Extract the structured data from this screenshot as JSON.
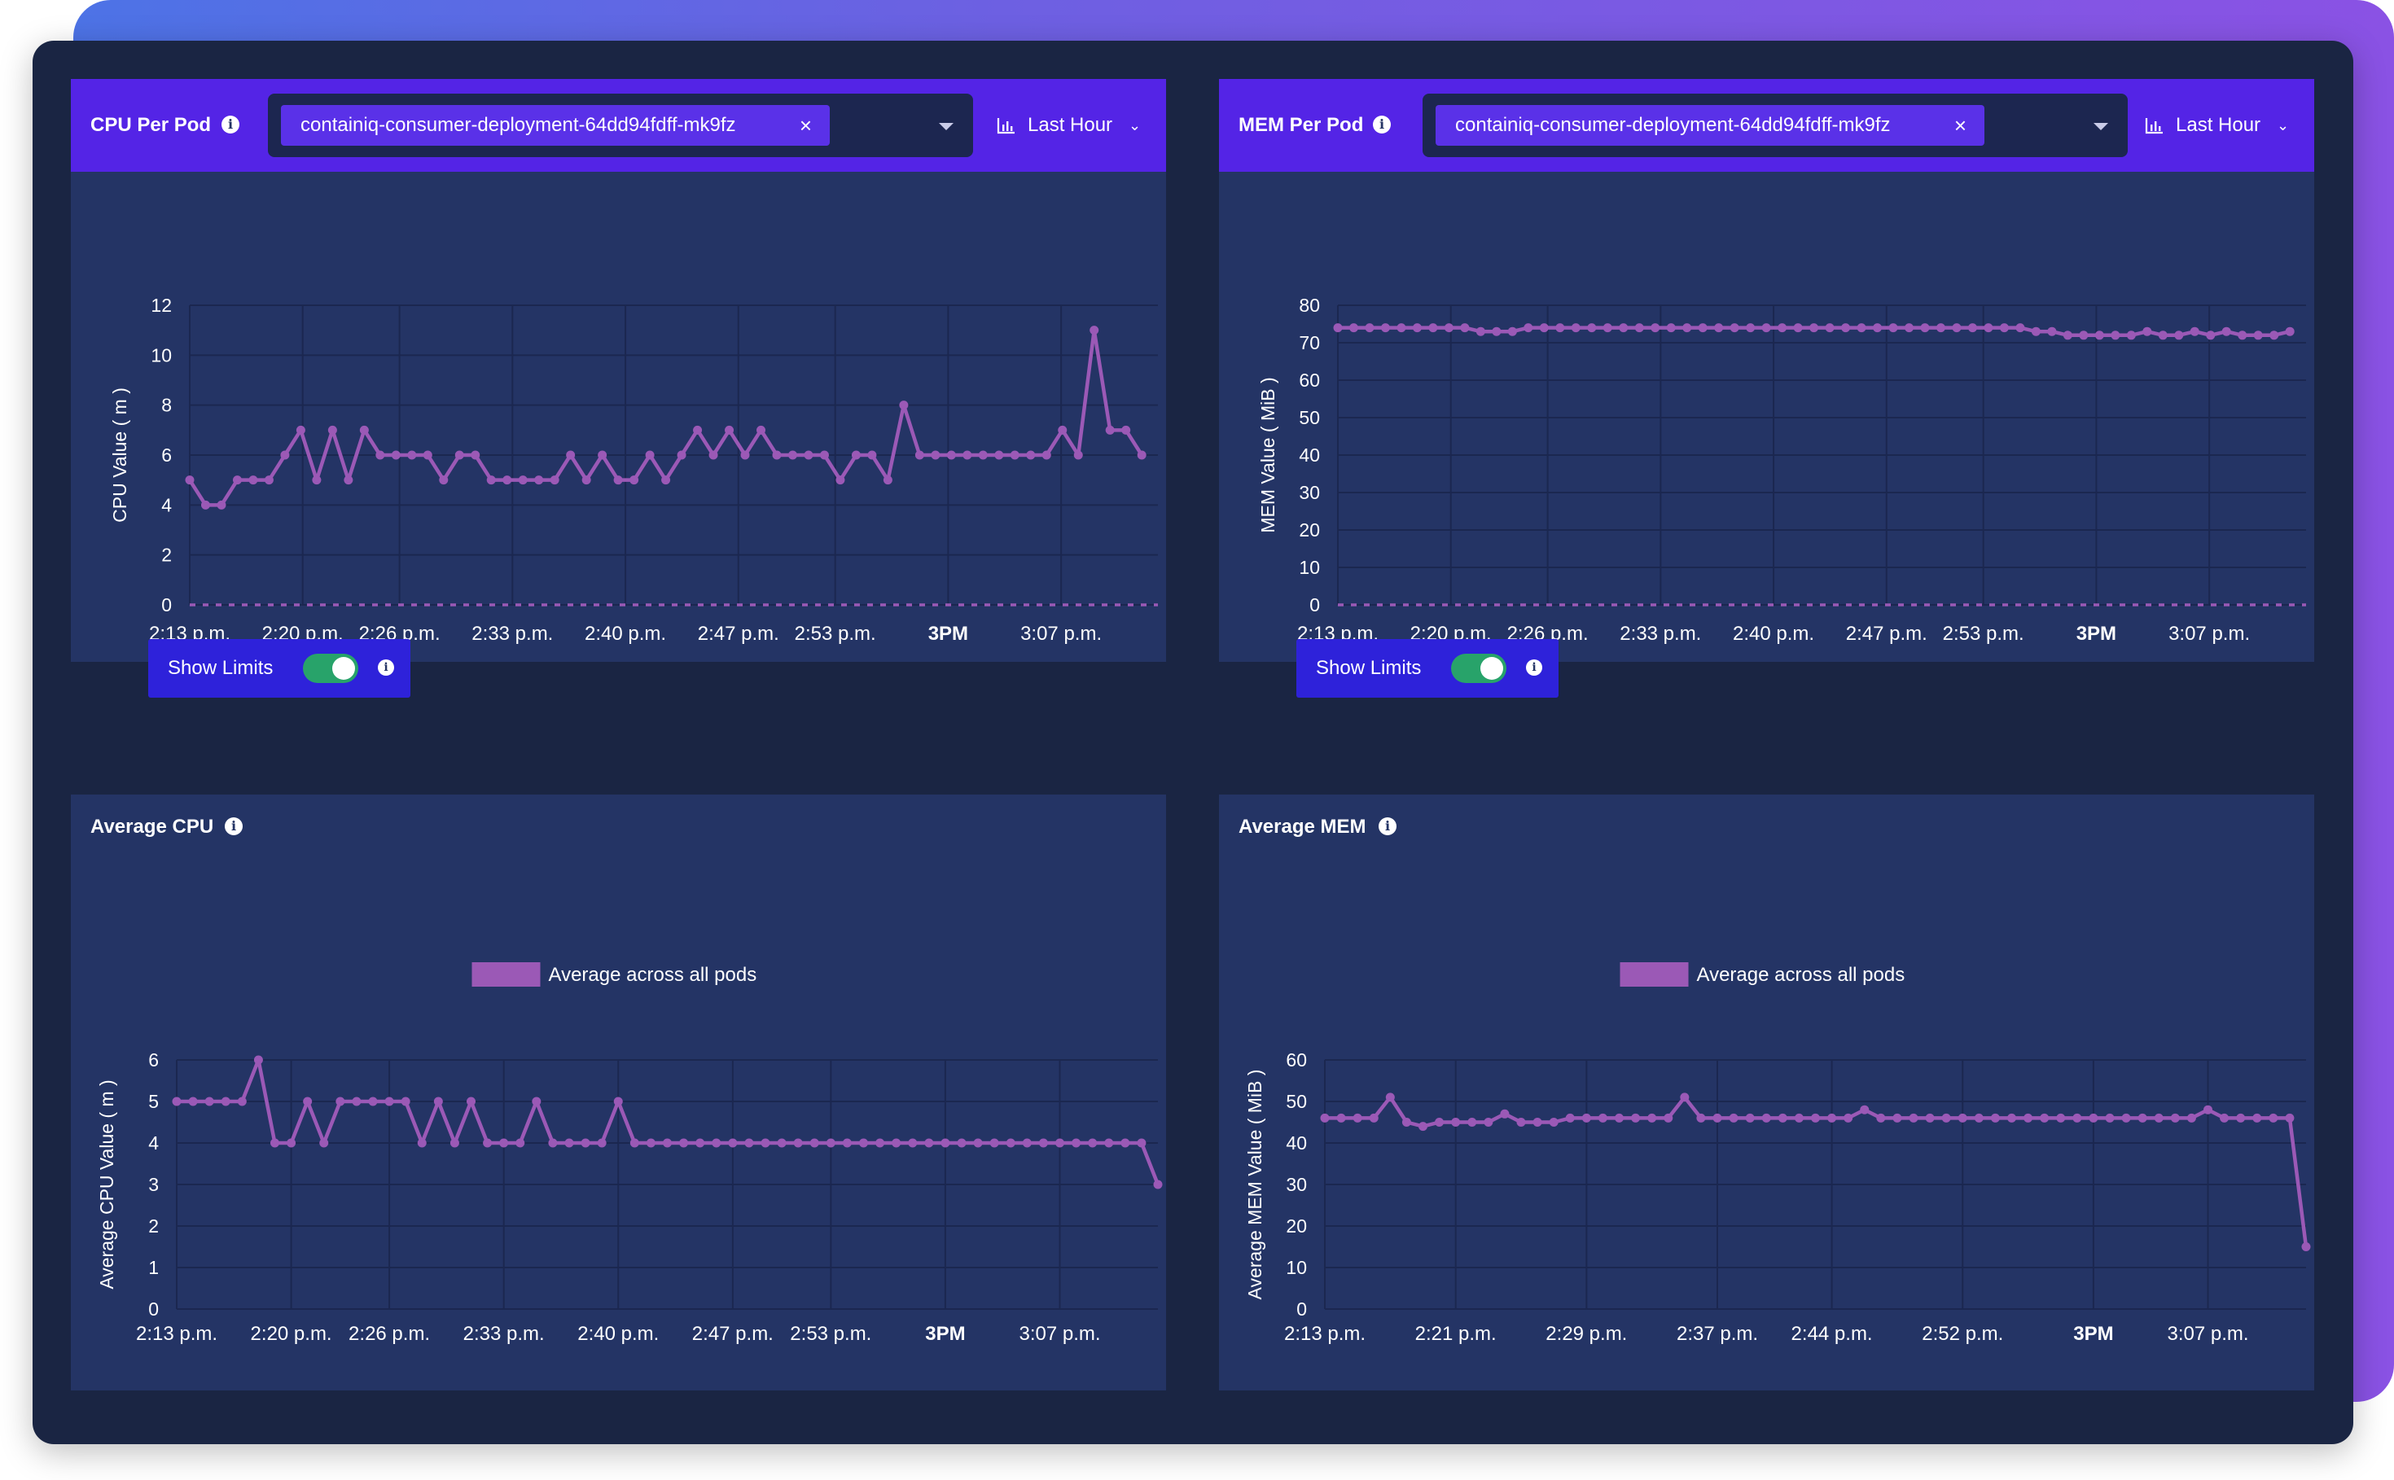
{
  "theme": {
    "line_color": "#9b59b6",
    "header_color": "#5424e6",
    "panel_color": "#243465",
    "frame_color": "#1a2543",
    "toggle_on_color": "#28a36a"
  },
  "panels": {
    "cpu_per_pod": {
      "title": "CPU Per Pod",
      "selected_pod": "containiq-consumer-deployment-64dd94fdff-mk9fz",
      "time_range": "Last Hour",
      "toggle_label": "Show Limits",
      "toggle_on": true
    },
    "mem_per_pod": {
      "title": "MEM Per Pod",
      "selected_pod": "containiq-consumer-deployment-64dd94fdff-mk9fz",
      "time_range": "Last Hour",
      "toggle_label": "Show Limits",
      "toggle_on": true
    },
    "avg_cpu": {
      "title": "Average CPU"
    },
    "avg_mem": {
      "title": "Average MEM"
    }
  },
  "chart_data": [
    {
      "id": "cpu_per_pod",
      "type": "line",
      "title": "",
      "ylabel": "CPU Value ( m )",
      "ylim": [
        0,
        12
      ],
      "yticks": [
        0,
        2,
        4,
        6,
        8,
        10,
        12
      ],
      "x_tick_labels": [
        "2:13 p.m.",
        "2:20 p.m.",
        "2:26 p.m.",
        "2:33 p.m.",
        "2:40 p.m.",
        "2:47 p.m.",
        "2:53 p.m.",
        "3PM",
        "3:07 p.m."
      ],
      "x_tick_minutes": [
        0,
        7,
        13,
        20,
        27,
        34,
        40,
        47,
        54
      ],
      "bold_tick": "3PM",
      "grid": true,
      "legend": "none",
      "series": [
        {
          "values": [
            5,
            4,
            4,
            5,
            5,
            5,
            6,
            7,
            5,
            7,
            5,
            7,
            6,
            6,
            6,
            6,
            5,
            6,
            6,
            5,
            5,
            5,
            5,
            5,
            6,
            5,
            6,
            5,
            5,
            6,
            5,
            6,
            7,
            6,
            7,
            6,
            7,
            6,
            6,
            6,
            6,
            5,
            6,
            6,
            5,
            8,
            6,
            6,
            6,
            6,
            6,
            6,
            6,
            6,
            6,
            7,
            6,
            11,
            7,
            7,
            6
          ],
          "t_start_minute": 0,
          "t_end_minute": 59
        },
        {
          "values": [
            0,
            0
          ],
          "style": "dashed-limit",
          "t_start_minute": 0,
          "t_end_minute": 60
        }
      ]
    },
    {
      "id": "mem_per_pod",
      "type": "line",
      "title": "",
      "ylabel": "MEM Value ( MiB )",
      "ylim": [
        0,
        80
      ],
      "yticks": [
        0,
        10,
        20,
        30,
        40,
        50,
        60,
        70,
        80
      ],
      "x_tick_labels": [
        "2:13 p.m.",
        "2:20 p.m.",
        "2:26 p.m.",
        "2:33 p.m.",
        "2:40 p.m.",
        "2:47 p.m.",
        "2:53 p.m.",
        "3PM",
        "3:07 p.m."
      ],
      "x_tick_minutes": [
        0,
        7,
        13,
        20,
        27,
        34,
        40,
        47,
        54
      ],
      "bold_tick": "3PM",
      "grid": true,
      "legend": "none",
      "series": [
        {
          "values": [
            74,
            74,
            74,
            74,
            74,
            74,
            74,
            74,
            74,
            73,
            73,
            73,
            74,
            74,
            74,
            74,
            74,
            74,
            74,
            74,
            74,
            74,
            74,
            74,
            74,
            74,
            74,
            74,
            74,
            74,
            74,
            74,
            74,
            74,
            74,
            74,
            74,
            74,
            74,
            74,
            74,
            74,
            74,
            74,
            73,
            73,
            72,
            72,
            72,
            72,
            72,
            73,
            72,
            72,
            73,
            72,
            73,
            72,
            72,
            72,
            73
          ],
          "t_start_minute": 0,
          "t_end_minute": 59
        },
        {
          "values": [
            0,
            0
          ],
          "style": "dashed-limit",
          "t_start_minute": 0,
          "t_end_minute": 60
        }
      ]
    },
    {
      "id": "avg_cpu",
      "type": "line",
      "title": "",
      "ylabel": "Average CPU Value ( m )",
      "ylim": [
        0,
        6
      ],
      "yticks": [
        0,
        1,
        2,
        3,
        4,
        5,
        6
      ],
      "x_tick_labels": [
        "2:13 p.m.",
        "2:20 p.m.",
        "2:26 p.m.",
        "2:33 p.m.",
        "2:40 p.m.",
        "2:47 p.m.",
        "2:53 p.m.",
        "3PM",
        "3:07 p.m."
      ],
      "x_tick_minutes": [
        0,
        7,
        13,
        20,
        27,
        34,
        40,
        47,
        54
      ],
      "bold_tick": "3PM",
      "grid": true,
      "legend": "top-center",
      "series": [
        {
          "name": "Average across all pods",
          "values": [
            5,
            5,
            5,
            5,
            5,
            6,
            4,
            4,
            5,
            4,
            5,
            5,
            5,
            5,
            5,
            4,
            5,
            4,
            5,
            4,
            4,
            4,
            5,
            4,
            4,
            4,
            4,
            5,
            4,
            4,
            4,
            4,
            4,
            4,
            4,
            4,
            4,
            4,
            4,
            4,
            4,
            4,
            4,
            4,
            4,
            4,
            4,
            4,
            4,
            4,
            4,
            4,
            4,
            4,
            4,
            4,
            4,
            4,
            4,
            4,
            3
          ],
          "t_start_minute": 0,
          "t_end_minute": 60
        }
      ]
    },
    {
      "id": "avg_mem",
      "type": "line",
      "title": "",
      "ylabel": "Average MEM Value ( MiB )",
      "ylim": [
        0,
        60
      ],
      "yticks": [
        0,
        10,
        20,
        30,
        40,
        50,
        60
      ],
      "x_tick_labels": [
        "2:13 p.m.",
        "2:21 p.m.",
        "2:29 p.m.",
        "2:37 p.m.",
        "2:44 p.m.",
        "2:52 p.m.",
        "3PM",
        "3:07 p.m."
      ],
      "x_tick_minutes": [
        0,
        8,
        16,
        24,
        31,
        39,
        47,
        54
      ],
      "bold_tick": "3PM",
      "grid": true,
      "legend": "top-center",
      "series": [
        {
          "name": "Average across all pods",
          "values": [
            46,
            46,
            46,
            46,
            51,
            45,
            44,
            45,
            45,
            45,
            45,
            47,
            45,
            45,
            45,
            46,
            46,
            46,
            46,
            46,
            46,
            46,
            51,
            46,
            46,
            46,
            46,
            46,
            46,
            46,
            46,
            46,
            46,
            48,
            46,
            46,
            46,
            46,
            46,
            46,
            46,
            46,
            46,
            46,
            46,
            46,
            46,
            46,
            46,
            46,
            46,
            46,
            46,
            46,
            48,
            46,
            46,
            46,
            46,
            46,
            15
          ],
          "t_start_minute": 0,
          "t_end_minute": 60
        }
      ]
    }
  ]
}
